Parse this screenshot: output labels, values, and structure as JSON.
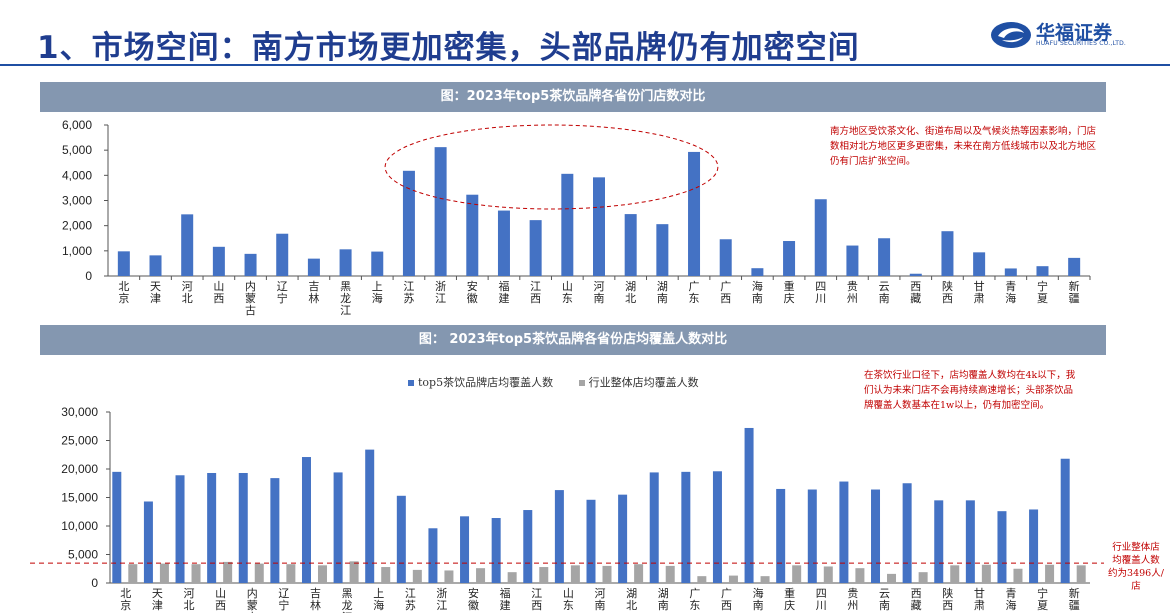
{
  "header": {
    "title": "1、市场空间：南方市场更加密集，头部品牌仍有加密空间",
    "logo_name": "华福证券",
    "logo_sub": "HUAFU SECURITIES CO.,LTD."
  },
  "chart1": {
    "banner": "图：2023年top5茶饮品牌各省份门店数对比",
    "note": "南方地区受饮茶文化、街道布局以及气候炎热等因素影响，门店数相对北方地区更多更密集，未来在南方低线城市以及北方地区仍有门店扩张空间。"
  },
  "chart2": {
    "banner": "图：  2023年top5茶饮品牌各省份店均覆盖人数对比",
    "note": "在茶饮行业口径下，店均覆盖人数均在4k以下，我们认为未来门店不会再持续高速增长；头部茶饮品牌覆盖人数基本在1w以上，仍有加密空间。",
    "side_note": "行业整体店均覆盖人数约为3496人/店"
  },
  "colors": {
    "blue": "#4472c4",
    "gray": "#a5a5a5",
    "red": "#c00000"
  },
  "chart_data": [
    {
      "type": "bar",
      "title": "2023年top5茶饮品牌各省份门店数对比",
      "categories": [
        "北京",
        "天津",
        "河北",
        "山西",
        "内蒙古",
        "辽宁",
        "吉林",
        "黑龙江",
        "上海",
        "江苏",
        "浙江",
        "安徽",
        "福建",
        "江西",
        "山东",
        "河南",
        "湖北",
        "湖南",
        "广东",
        "广西",
        "海南",
        "重庆",
        "四川",
        "贵州",
        "云南",
        "西藏",
        "陕西",
        "甘肃",
        "青海",
        "宁夏",
        "新疆"
      ],
      "values": [
        980,
        820,
        2450,
        1160,
        880,
        1680,
        690,
        1060,
        970,
        4180,
        5120,
        3230,
        2600,
        2220,
        4060,
        3920,
        2460,
        2060,
        4930,
        1460,
        310,
        1390,
        3050,
        1210,
        1500,
        90,
        1780,
        940,
        300,
        390,
        720
      ],
      "ylim": [
        0,
        6000
      ],
      "yticks": [
        "0",
        "1,000",
        "2,000",
        "3,000",
        "4,000",
        "5,000",
        "6,000"
      ],
      "grid": false
    },
    {
      "type": "bar",
      "title": "2023年top5茶饮品牌各省份店均覆盖人数对比",
      "categories": [
        "北京",
        "天津",
        "河北",
        "山西",
        "内蒙古",
        "辽宁",
        "吉林",
        "黑龙江",
        "上海",
        "江苏",
        "浙江",
        "安徽",
        "福建",
        "江西",
        "山东",
        "河南",
        "湖北",
        "湖南",
        "广东",
        "广西",
        "海南",
        "重庆",
        "四川",
        "贵州",
        "云南",
        "西藏",
        "陕西",
        "甘肃",
        "青海",
        "宁夏",
        "新疆"
      ],
      "series": [
        {
          "name": "top5茶饮品牌店均覆盖人数",
          "values": [
            19500,
            14300,
            18900,
            19300,
            19300,
            18400,
            22100,
            19400,
            23400,
            15300,
            9600,
            11700,
            11400,
            12800,
            16300,
            14600,
            15500,
            19400,
            19500,
            19600,
            27200,
            16500,
            16400,
            17800,
            16400,
            17500,
            14500,
            14500,
            12600,
            12900,
            21800
          ]
        },
        {
          "name": "行业整体店均覆盖人数",
          "values": [
            3300,
            3400,
            3300,
            3700,
            3400,
            3300,
            3100,
            3800,
            2800,
            2300,
            2200,
            2600,
            1900,
            2800,
            3100,
            3000,
            3300,
            3000,
            1200,
            1300,
            1200,
            3100,
            2900,
            2600,
            1600,
            1900,
            3100,
            3200,
            2500,
            3200,
            3100
          ]
        }
      ],
      "ylim": [
        0,
        30000
      ],
      "yticks": [
        "0",
        "5,000",
        "10,000",
        "15,000",
        "20,000",
        "25,000",
        "30,000"
      ],
      "reference_line": 3496,
      "legend": "top"
    }
  ]
}
